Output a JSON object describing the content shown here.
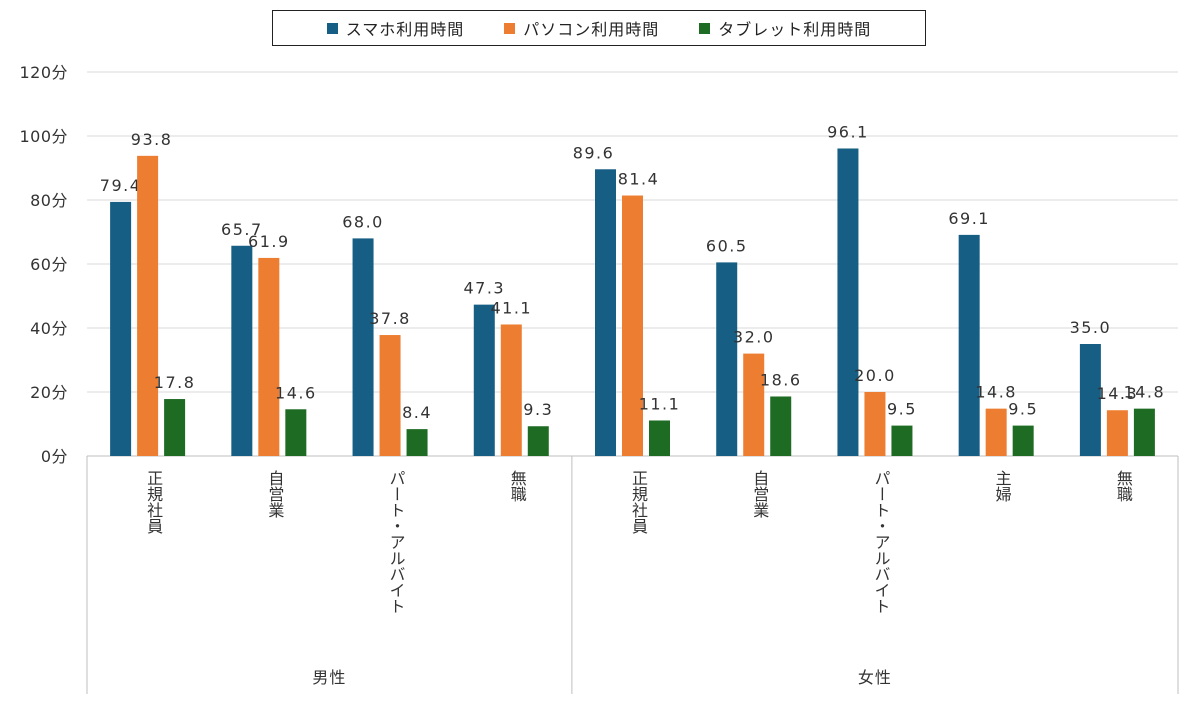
{
  "chart_data": {
    "type": "bar",
    "ylim": [
      0,
      120
    ],
    "yticks": [
      0,
      20,
      40,
      60,
      80,
      100,
      120
    ],
    "ytick_suffix": "分",
    "grid": true,
    "legend_position": "top",
    "groups": [
      {
        "name": "男性",
        "categories": [
          "正規社員",
          "自営業",
          "パート・アルバイト",
          "無職"
        ]
      },
      {
        "name": "女性",
        "categories": [
          "正規社員",
          "自営業",
          "パート・アルバイト",
          "主婦",
          "無職"
        ]
      }
    ],
    "series": [
      {
        "name": "スマホ利用時間",
        "color": "#165e83",
        "values": [
          79.4,
          65.7,
          68.0,
          47.3,
          89.6,
          60.5,
          96.1,
          69.1,
          35.0
        ],
        "labels": [
          "79.4",
          "65.7",
          "68.0",
          "47.3",
          "89.6",
          "60.5",
          "96.1",
          "69.1",
          "35.0"
        ]
      },
      {
        "name": "パソコン利用時間",
        "color": "#ed7d31",
        "values": [
          93.8,
          61.9,
          37.8,
          41.1,
          81.4,
          32.0,
          20.0,
          14.8,
          14.3
        ],
        "labels": [
          "93.8",
          "61.9",
          "37.8",
          "41.1",
          "81.4",
          "32.0",
          "20.0",
          "14.8",
          "14.3"
        ]
      },
      {
        "name": "タブレット利用時間",
        "color": "#1e6b24",
        "values": [
          17.8,
          14.6,
          8.4,
          9.3,
          11.1,
          18.6,
          9.5,
          9.5,
          14.8
        ],
        "labels": [
          "17.8",
          "14.6",
          "8.4",
          "9.3",
          "11.1",
          "18.6",
          "9.5",
          "9.5",
          "14.8"
        ]
      }
    ]
  }
}
